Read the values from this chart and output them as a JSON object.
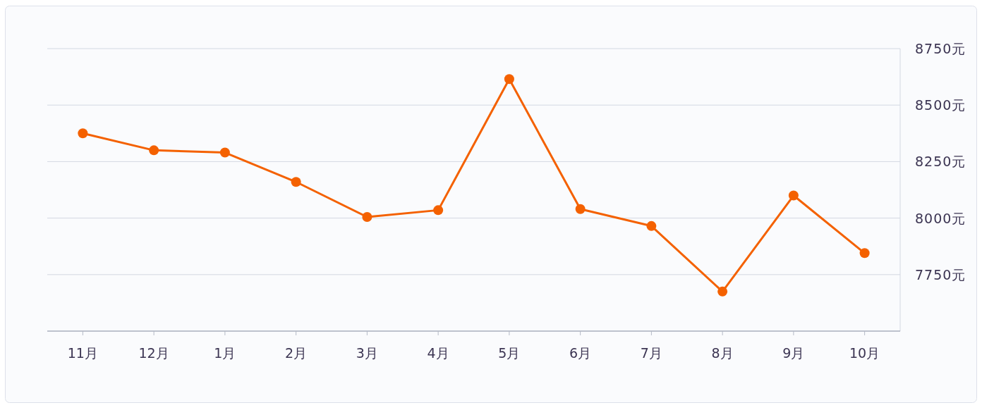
{
  "chart_data": {
    "type": "line",
    "categories": [
      "11月",
      "12月",
      "1月",
      "2月",
      "3月",
      "4月",
      "5月",
      "6月",
      "7月",
      "8月",
      "9月",
      "10月"
    ],
    "series": [
      {
        "color": "#f46100",
        "values": [
          8375,
          8300,
          8290,
          8160,
          8005,
          8035,
          8615,
          8040,
          7965,
          7675,
          8100,
          7845
        ]
      }
    ],
    "ylim": [
      7500,
      8750
    ],
    "yticks": [
      {
        "value": 7750,
        "label": "7750元"
      },
      {
        "value": 8000,
        "label": "8000元"
      },
      {
        "value": 8250,
        "label": "8250元"
      },
      {
        "value": 8500,
        "label": "8500元"
      },
      {
        "value": 8750,
        "label": "8750元"
      }
    ],
    "grid": "y",
    "marker": "circle",
    "line_style": "solid"
  }
}
